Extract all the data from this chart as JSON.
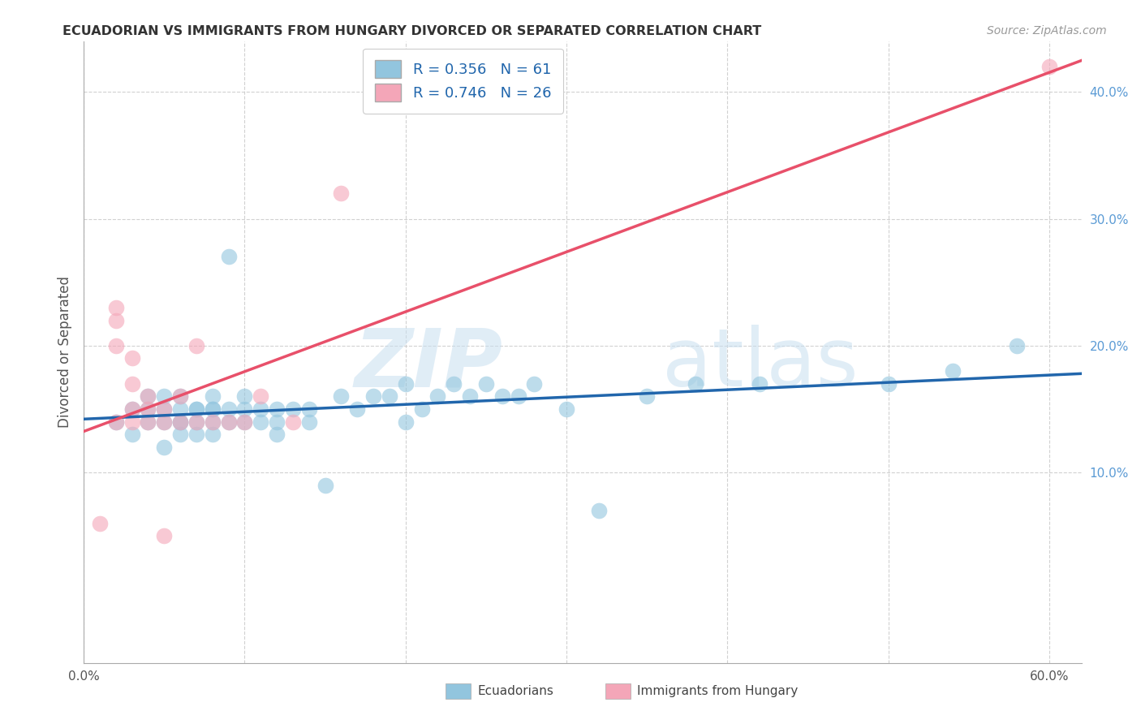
{
  "title": "ECUADORIAN VS IMMIGRANTS FROM HUNGARY DIVORCED OR SEPARATED CORRELATION CHART",
  "source": "Source: ZipAtlas.com",
  "ylabel": "Divorced or Separated",
  "xlabel_blue": "Ecuadorians",
  "xlabel_pink": "Immigrants from Hungary",
  "R_blue": 0.356,
  "N_blue": 61,
  "R_pink": 0.746,
  "N_pink": 26,
  "xlim": [
    0.0,
    0.62
  ],
  "ylim": [
    -0.05,
    0.44
  ],
  "xtick_vals": [
    0.0,
    0.1,
    0.2,
    0.3,
    0.4,
    0.5,
    0.6
  ],
  "xtick_labels": [
    "0.0%",
    "",
    "",
    "",
    "",
    "",
    "60.0%"
  ],
  "ytick_vals": [
    0.1,
    0.2,
    0.3,
    0.4
  ],
  "ytick_labels": [
    "10.0%",
    "20.0%",
    "30.0%",
    "40.0%"
  ],
  "color_blue": "#92c5de",
  "color_pink": "#f4a6b8",
  "line_color_blue": "#2166ac",
  "line_color_pink": "#e8506a",
  "background_color": "#ffffff",
  "blue_points_x": [
    0.02,
    0.03,
    0.03,
    0.04,
    0.04,
    0.04,
    0.05,
    0.05,
    0.05,
    0.05,
    0.06,
    0.06,
    0.06,
    0.06,
    0.06,
    0.07,
    0.07,
    0.07,
    0.07,
    0.08,
    0.08,
    0.08,
    0.08,
    0.08,
    0.09,
    0.09,
    0.09,
    0.1,
    0.1,
    0.1,
    0.11,
    0.11,
    0.12,
    0.12,
    0.12,
    0.13,
    0.14,
    0.14,
    0.15,
    0.16,
    0.17,
    0.18,
    0.19,
    0.2,
    0.2,
    0.21,
    0.22,
    0.23,
    0.24,
    0.25,
    0.26,
    0.27,
    0.28,
    0.3,
    0.32,
    0.35,
    0.38,
    0.42,
    0.5,
    0.54,
    0.58
  ],
  "blue_points_y": [
    0.14,
    0.13,
    0.15,
    0.14,
    0.15,
    0.16,
    0.12,
    0.14,
    0.15,
    0.16,
    0.13,
    0.14,
    0.14,
    0.15,
    0.16,
    0.13,
    0.14,
    0.15,
    0.15,
    0.13,
    0.14,
    0.15,
    0.15,
    0.16,
    0.14,
    0.15,
    0.27,
    0.14,
    0.15,
    0.16,
    0.14,
    0.15,
    0.13,
    0.14,
    0.15,
    0.15,
    0.14,
    0.15,
    0.09,
    0.16,
    0.15,
    0.16,
    0.16,
    0.14,
    0.17,
    0.15,
    0.16,
    0.17,
    0.16,
    0.17,
    0.16,
    0.16,
    0.17,
    0.15,
    0.07,
    0.16,
    0.17,
    0.17,
    0.17,
    0.18,
    0.2
  ],
  "pink_points_x": [
    0.01,
    0.02,
    0.02,
    0.02,
    0.02,
    0.03,
    0.03,
    0.03,
    0.03,
    0.04,
    0.04,
    0.04,
    0.05,
    0.05,
    0.05,
    0.06,
    0.06,
    0.07,
    0.07,
    0.08,
    0.09,
    0.1,
    0.11,
    0.13,
    0.16,
    0.6
  ],
  "pink_points_y": [
    0.06,
    0.14,
    0.2,
    0.22,
    0.23,
    0.14,
    0.15,
    0.17,
    0.19,
    0.14,
    0.15,
    0.16,
    0.05,
    0.14,
    0.15,
    0.14,
    0.16,
    0.14,
    0.2,
    0.14,
    0.14,
    0.14,
    0.16,
    0.14,
    0.32,
    0.42
  ]
}
